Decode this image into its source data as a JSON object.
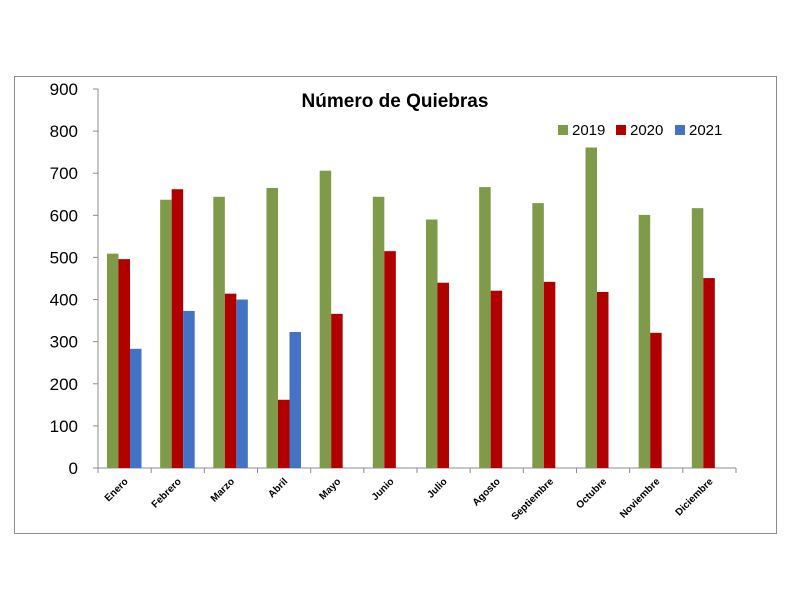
{
  "chart_data": {
    "type": "bar",
    "title": "Número de Quiebras",
    "xlabel": "",
    "ylabel": "",
    "ylim": [
      0,
      900
    ],
    "yticks": [
      0,
      100,
      200,
      300,
      400,
      500,
      600,
      700,
      800,
      900
    ],
    "grid": false,
    "legend_position": "top-right",
    "categories": [
      "Enero",
      "Febrero",
      "Marzo",
      "Abril",
      "Mayo",
      "Junio",
      "Julio",
      "Agosto",
      "Septiembre",
      "Octubre",
      "Noviembre",
      "Diciembre"
    ],
    "series": [
      {
        "name": "2019",
        "color": "#7f9a48",
        "values": [
          509,
          637,
          644,
          665,
          706,
          644,
          590,
          667,
          629,
          761,
          601,
          617
        ]
      },
      {
        "name": "2020",
        "color": "#b00000",
        "values": [
          496,
          662,
          414,
          162,
          366,
          515,
          440,
          421,
          442,
          418,
          321,
          451
        ]
      },
      {
        "name": "2021",
        "color": "#4472c4",
        "values": [
          283,
          373,
          400,
          323,
          null,
          null,
          null,
          null,
          null,
          null,
          null,
          null
        ]
      }
    ]
  }
}
